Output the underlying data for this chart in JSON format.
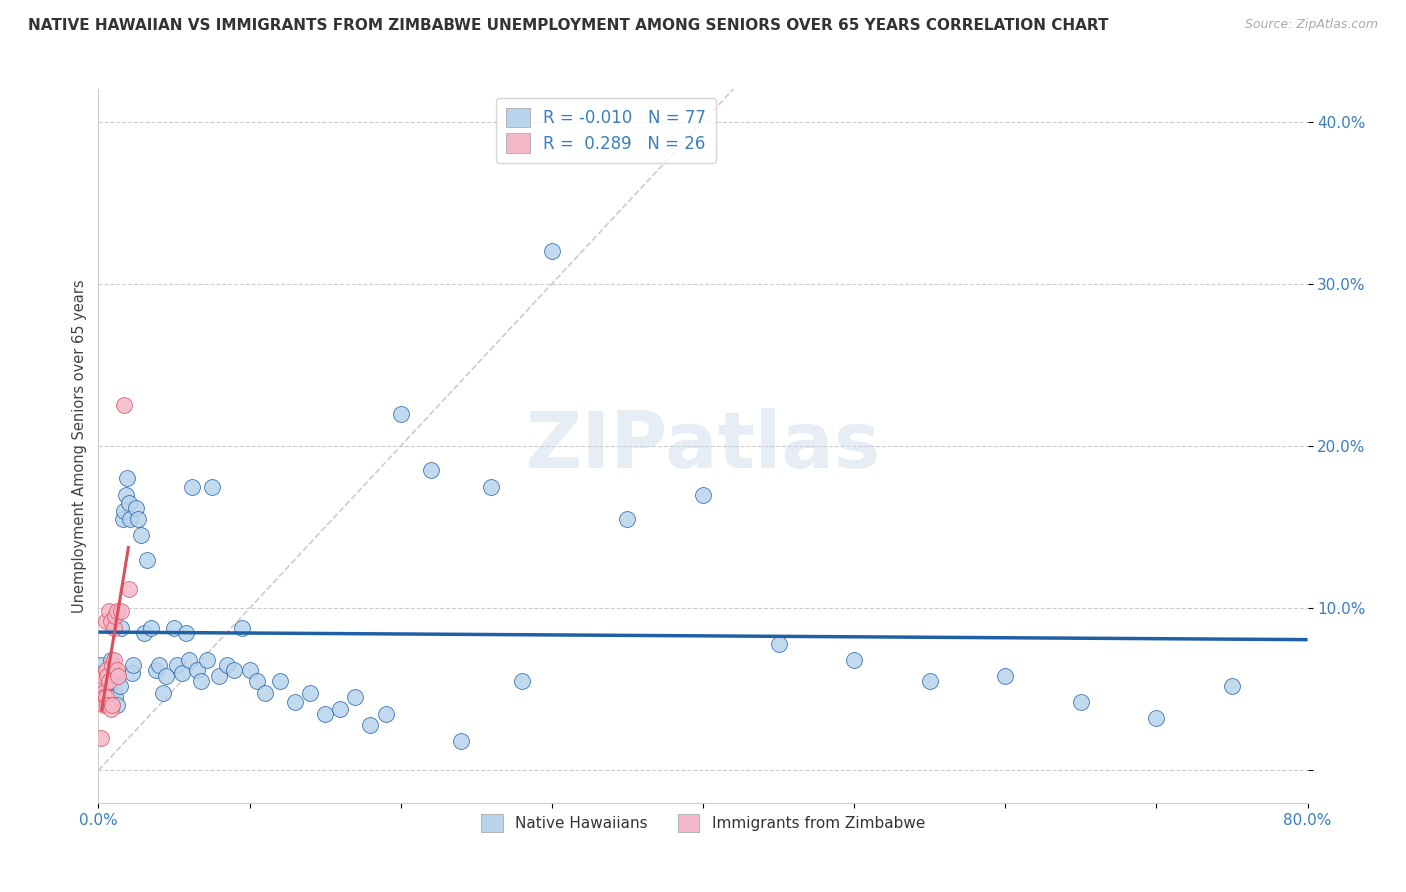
{
  "title": "NATIVE HAWAIIAN VS IMMIGRANTS FROM ZIMBABWE UNEMPLOYMENT AMONG SENIORS OVER 65 YEARS CORRELATION CHART",
  "source": "Source: ZipAtlas.com",
  "ylabel": "Unemployment Among Seniors over 65 years",
  "xmin": 0.0,
  "xmax": 0.8,
  "ymin": -0.02,
  "ymax": 0.42,
  "legend_r1": "R = -0.010",
  "legend_n1": "N = 77",
  "legend_r2": "R =  0.289",
  "legend_n2": "N = 26",
  "color_blue": "#b8d4ec",
  "color_pink": "#f5b8c8",
  "color_line_blue": "#1f5fa6",
  "color_line_pink": "#d94f5c",
  "color_grid": "#cccccc",
  "watermark": "ZIPatlas",
  "native_hawaiian_x": [
    0.002,
    0.003,
    0.004,
    0.005,
    0.005,
    0.006,
    0.006,
    0.007,
    0.007,
    0.008,
    0.009,
    0.009,
    0.01,
    0.01,
    0.011,
    0.012,
    0.013,
    0.014,
    0.015,
    0.016,
    0.017,
    0.018,
    0.019,
    0.02,
    0.021,
    0.022,
    0.023,
    0.025,
    0.026,
    0.028,
    0.03,
    0.032,
    0.035,
    0.038,
    0.04,
    0.043,
    0.045,
    0.05,
    0.052,
    0.055,
    0.058,
    0.06,
    0.062,
    0.065,
    0.068,
    0.072,
    0.075,
    0.08,
    0.085,
    0.09,
    0.095,
    0.1,
    0.105,
    0.11,
    0.12,
    0.13,
    0.14,
    0.15,
    0.16,
    0.17,
    0.18,
    0.19,
    0.2,
    0.22,
    0.24,
    0.26,
    0.28,
    0.3,
    0.35,
    0.4,
    0.45,
    0.5,
    0.55,
    0.6,
    0.65,
    0.7,
    0.75
  ],
  "native_hawaiian_y": [
    0.065,
    0.06,
    0.055,
    0.05,
    0.048,
    0.045,
    0.058,
    0.052,
    0.042,
    0.068,
    0.055,
    0.062,
    0.05,
    0.06,
    0.045,
    0.04,
    0.058,
    0.052,
    0.088,
    0.155,
    0.16,
    0.17,
    0.18,
    0.165,
    0.155,
    0.06,
    0.065,
    0.162,
    0.155,
    0.145,
    0.085,
    0.13,
    0.088,
    0.062,
    0.065,
    0.048,
    0.058,
    0.088,
    0.065,
    0.06,
    0.085,
    0.068,
    0.175,
    0.062,
    0.055,
    0.068,
    0.175,
    0.058,
    0.065,
    0.062,
    0.088,
    0.062,
    0.055,
    0.048,
    0.055,
    0.042,
    0.048,
    0.035,
    0.038,
    0.045,
    0.028,
    0.035,
    0.22,
    0.185,
    0.018,
    0.175,
    0.055,
    0.32,
    0.155,
    0.17,
    0.078,
    0.068,
    0.055,
    0.058,
    0.042,
    0.032,
    0.052
  ],
  "zimbabwe_x": [
    0.002,
    0.002,
    0.003,
    0.003,
    0.004,
    0.004,
    0.005,
    0.005,
    0.005,
    0.006,
    0.006,
    0.007,
    0.007,
    0.008,
    0.008,
    0.009,
    0.009,
    0.01,
    0.01,
    0.011,
    0.012,
    0.012,
    0.013,
    0.015,
    0.017,
    0.02
  ],
  "zimbabwe_y": [
    0.02,
    0.055,
    0.048,
    0.058,
    0.045,
    0.04,
    0.062,
    0.045,
    0.092,
    0.04,
    0.058,
    0.055,
    0.098,
    0.038,
    0.092,
    0.04,
    0.065,
    0.068,
    0.088,
    0.095,
    0.062,
    0.098,
    0.058,
    0.098,
    0.225,
    0.112
  ]
}
